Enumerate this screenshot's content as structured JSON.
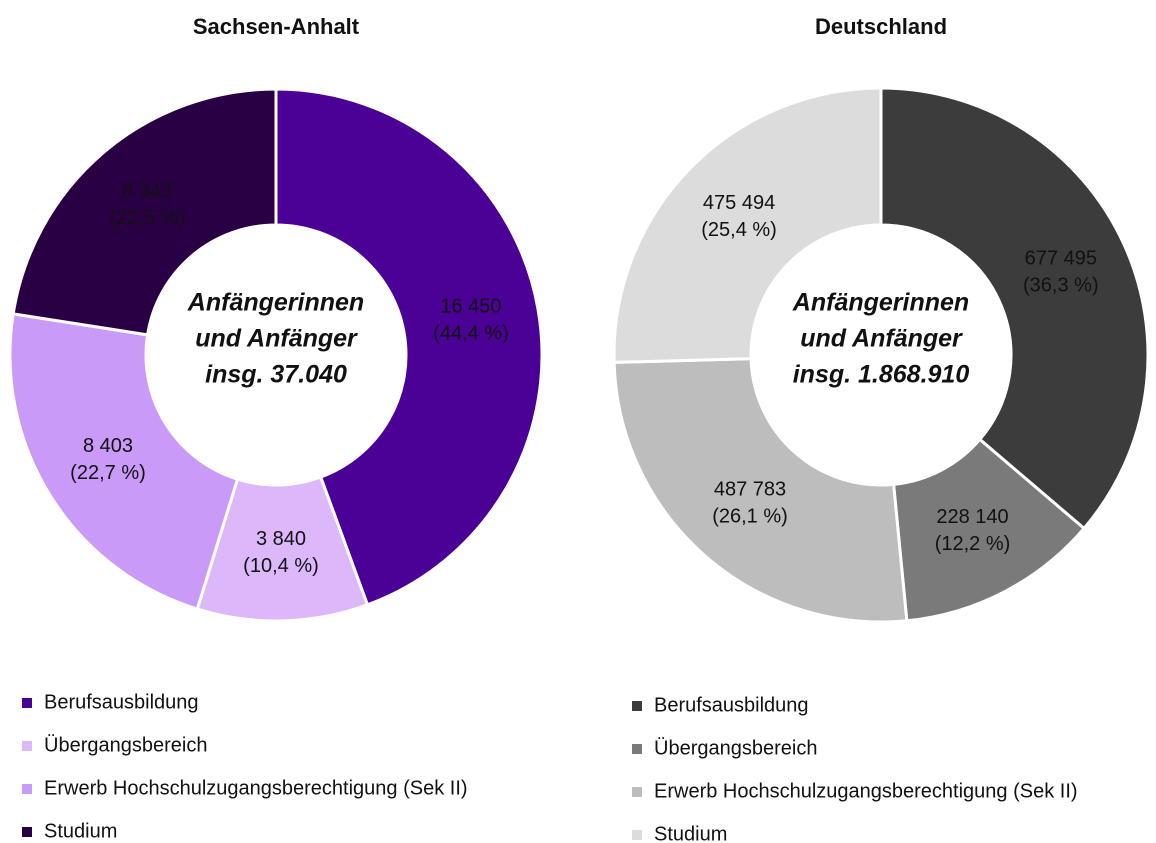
{
  "chart_data": [
    {
      "type": "donut",
      "title": "Sachsen-Anhalt",
      "center_text": [
        "Anfängerinnen",
        "und Anfänger",
        "insg. 37.040"
      ],
      "categories": [
        "Berufsausbildung",
        "Übergangsbereich",
        "Erwerb Hochschulzugangsberechtigung (Sek II)",
        "Studium"
      ],
      "values": [
        16450,
        3840,
        8403,
        8343
      ],
      "value_labels": [
        "16 450",
        "3 840",
        "8 403",
        "8 343"
      ],
      "percents": [
        44.4,
        10.4,
        22.7,
        22.5
      ],
      "percent_labels": [
        "(44,4 %)",
        "(10,4 %)",
        "(22,7 %)",
        "(22,5 %)"
      ],
      "colors": [
        "#4b0096",
        "#dcb8fb",
        "#c99af8",
        "#2a0045"
      ]
    },
    {
      "type": "donut",
      "title": "Deutschland",
      "center_text": [
        "Anfängerinnen",
        "und Anfänger",
        "insg. 1.868.910"
      ],
      "categories": [
        "Berufsausbildung",
        "Übergangsbereich",
        "Erwerb Hochschulzugangsberechtigung (Sek II)",
        "Studium"
      ],
      "values": [
        677495,
        228140,
        487783,
        475494
      ],
      "value_labels": [
        "677 495",
        "228 140",
        "487 783",
        "475 494"
      ],
      "percents": [
        36.3,
        12.2,
        26.1,
        25.4
      ],
      "percent_labels": [
        "(36,3 %)",
        "(12,2 %)",
        "(26,1 %)",
        "(25,4 %)"
      ],
      "colors": [
        "#3c3c3c",
        "#7a7a7a",
        "#bdbdbd",
        "#dcdcdc"
      ]
    }
  ]
}
